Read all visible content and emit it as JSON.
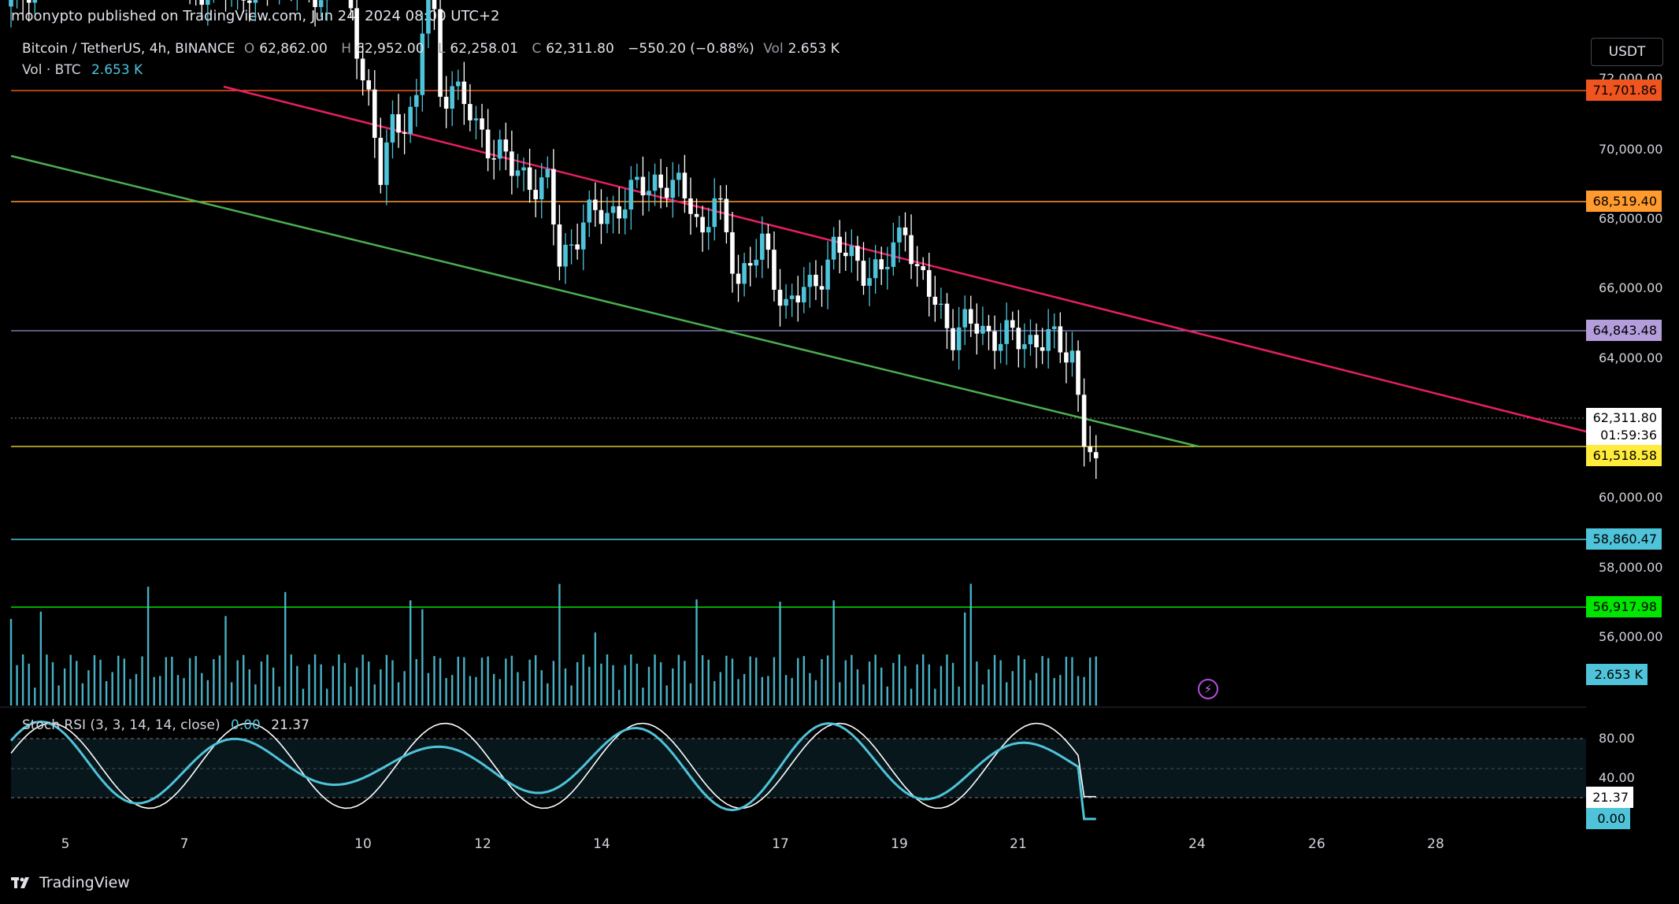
{
  "header": {
    "publisher_text": "moonypto published on TradingView.com, Jun 24, 2024 08:00 UTC+2"
  },
  "legend": {
    "symbol": "Bitcoin / TetherUS, 4h, BINANCE",
    "open_label": "O",
    "open": "62,862.00",
    "high_label": "H",
    "high": "62,952.00",
    "low_label": "L",
    "low": "62,258.01",
    "close_label": "C",
    "close": "62,311.80",
    "change": "−550.20 (−0.88%)",
    "vol_label": "Vol",
    "vol": "2.653 K",
    "vol_line_label": "Vol · BTC",
    "vol_line_value": "2.653 K"
  },
  "currency_button": "USDT",
  "price_axis": {
    "ticks": [
      "72,000.00",
      "70,000.00",
      "68,000.00",
      "66,000.00",
      "64,000.00",
      "60,000.00",
      "58,000.00",
      "56,000.00"
    ]
  },
  "price_badges": {
    "b1": {
      "text": "71,701.86",
      "color": "#f0541f"
    },
    "b2": {
      "text": "68,519.40",
      "color": "#ff9a2e"
    },
    "b3": {
      "text": "64,843.48",
      "color": "#b39ddb"
    },
    "b4_price": "62,311.80",
    "b4_timer": "01:59:36",
    "b5": {
      "text": "61,518.58",
      "color": "#ffeb3b"
    },
    "b6": {
      "text": "58,860.47",
      "color": "#4fc3d9"
    },
    "b7": {
      "text": "56,917.98",
      "color": "#00e600"
    },
    "b8": {
      "text": "2.653 K",
      "color": "#4fc3d9"
    }
  },
  "stoch": {
    "label": "Stoch RSI (3, 3, 14, 14, close)",
    "k": "0.00",
    "d": "21.37",
    "axis_ticks": [
      "80.00",
      "40.00"
    ],
    "badge_d": "21.37",
    "badge_k": "0.00"
  },
  "x_axis": [
    "5",
    "7",
    "10",
    "12",
    "14",
    "17",
    "19",
    "21",
    "24",
    "26",
    "28"
  ],
  "footer_brand": "TradingView",
  "colors": {
    "up": "#4fc3d9",
    "down": "#ffffff",
    "resistance": "#e91e63",
    "support": "#4caf50"
  }
}
